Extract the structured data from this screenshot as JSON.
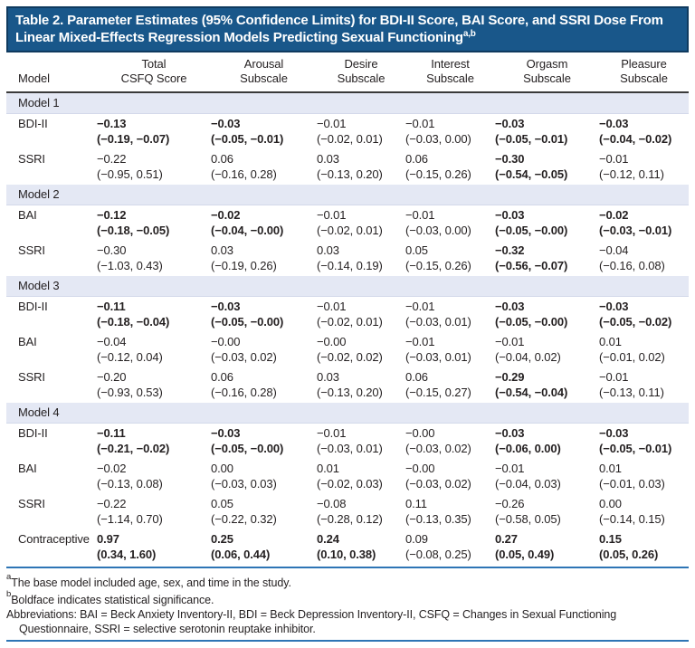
{
  "title": {
    "text": "Table 2. Parameter Estimates (95% Confidence Limits) for BDI-II Score, BAI Score, and SSRI Dose From Linear Mixed-Effects Regression Models Predicting Sexual Functioning",
    "superscript": "a,b"
  },
  "colors": {
    "title_bar_fill": "#19578a",
    "title_bar_border": "#0f3a5f",
    "group_band": "#e4e8f4",
    "rule_blue": "#2e75b5",
    "header_rule": "#3a3a3a",
    "text": "#231f20"
  },
  "columns": [
    {
      "line1": "",
      "line2": "Model"
    },
    {
      "line1": "Total",
      "line2": "CSFQ Score"
    },
    {
      "line1": "Arousal",
      "line2": "Subscale"
    },
    {
      "line1": "Desire",
      "line2": "Subscale"
    },
    {
      "line1": "Interest",
      "line2": "Subscale"
    },
    {
      "line1": "Orgasm",
      "line2": "Subscale"
    },
    {
      "line1": "Pleasure",
      "line2": "Subscale"
    }
  ],
  "groups": [
    {
      "label": "Model 1",
      "rows": [
        {
          "label": "BDI-II",
          "cells": [
            {
              "est": "−0.13",
              "ci": "(−0.19, −0.07)",
              "bold": true
            },
            {
              "est": "−0.03",
              "ci": "(−0.05, −0.01)",
              "bold": true
            },
            {
              "est": "−0.01",
              "ci": "(−0.02, 0.01)",
              "bold": false
            },
            {
              "est": "−0.01",
              "ci": "(−0.03, 0.00)",
              "bold": false
            },
            {
              "est": "−0.03",
              "ci": "(−0.05, −0.01)",
              "bold": true
            },
            {
              "est": "−0.03",
              "ci": "(−0.04, −0.02)",
              "bold": true
            }
          ]
        },
        {
          "label": "SSRI",
          "cells": [
            {
              "est": "−0.22",
              "ci": "(−0.95, 0.51)",
              "bold": false
            },
            {
              "est": "0.06",
              "ci": "(−0.16, 0.28)",
              "bold": false
            },
            {
              "est": "0.03",
              "ci": "(−0.13, 0.20)",
              "bold": false
            },
            {
              "est": "0.06",
              "ci": "(−0.15, 0.26)",
              "bold": false
            },
            {
              "est": "−0.30",
              "ci": "(−0.54, −0.05)",
              "bold": true
            },
            {
              "est": "−0.01",
              "ci": "(−0.12, 0.11)",
              "bold": false
            }
          ]
        }
      ]
    },
    {
      "label": "Model 2",
      "rows": [
        {
          "label": "BAI",
          "cells": [
            {
              "est": "−0.12",
              "ci": "(−0.18, −0.05)",
              "bold": true
            },
            {
              "est": "−0.02",
              "ci": "(−0.04, −0.00)",
              "bold": true
            },
            {
              "est": "−0.01",
              "ci": "(−0.02, 0.01)",
              "bold": false
            },
            {
              "est": "−0.01",
              "ci": "(−0.03, 0.00)",
              "bold": false
            },
            {
              "est": "−0.03",
              "ci": "(−0.05, −0.00)",
              "bold": true
            },
            {
              "est": "−0.02",
              "ci": "(−0.03, −0.01)",
              "bold": true
            }
          ]
        },
        {
          "label": "SSRI",
          "cells": [
            {
              "est": "−0.30",
              "ci": "(−1.03, 0.43)",
              "bold": false
            },
            {
              "est": "0.03",
              "ci": "(−0.19, 0.26)",
              "bold": false
            },
            {
              "est": "0.03",
              "ci": "(−0.14, 0.19)",
              "bold": false
            },
            {
              "est": "0.05",
              "ci": "(−0.15, 0.26)",
              "bold": false
            },
            {
              "est": "−0.32",
              "ci": "(−0.56, −0.07)",
              "bold": true
            },
            {
              "est": "−0.04",
              "ci": "(−0.16, 0.08)",
              "bold": false
            }
          ]
        }
      ]
    },
    {
      "label": "Model 3",
      "rows": [
        {
          "label": "BDI-II",
          "cells": [
            {
              "est": "−0.11",
              "ci": "(−0.18, −0.04)",
              "bold": true
            },
            {
              "est": "−0.03",
              "ci": "(−0.05, −0.00)",
              "bold": true
            },
            {
              "est": "−0.01",
              "ci": "(−0.02, 0.01)",
              "bold": false
            },
            {
              "est": "−0.01",
              "ci": "(−0.03, 0.01)",
              "bold": false
            },
            {
              "est": "−0.03",
              "ci": "(−0.05, −0.00)",
              "bold": true
            },
            {
              "est": "−0.03",
              "ci": "(−0.05, −0.02)",
              "bold": true
            }
          ]
        },
        {
          "label": "BAI",
          "cells": [
            {
              "est": "−0.04",
              "ci": "(−0.12, 0.04)",
              "bold": false
            },
            {
              "est": "−0.00",
              "ci": "(−0.03, 0.02)",
              "bold": false
            },
            {
              "est": "−0.00",
              "ci": "(−0.02, 0.02)",
              "bold": false
            },
            {
              "est": "−0.01",
              "ci": "(−0.03, 0.01)",
              "bold": false
            },
            {
              "est": "−0.01",
              "ci": "(−0.04, 0.02)",
              "bold": false
            },
            {
              "est": "0.01",
              "ci": "(−0.01, 0.02)",
              "bold": false
            }
          ]
        },
        {
          "label": "SSRI",
          "cells": [
            {
              "est": "−0.20",
              "ci": "(−0.93, 0.53)",
              "bold": false
            },
            {
              "est": "0.06",
              "ci": "(−0.16, 0.28)",
              "bold": false
            },
            {
              "est": "0.03",
              "ci": "(−0.13, 0.20)",
              "bold": false
            },
            {
              "est": "0.06",
              "ci": "(−0.15, 0.27)",
              "bold": false
            },
            {
              "est": "−0.29",
              "ci": "(−0.54, −0.04)",
              "bold": true
            },
            {
              "est": "−0.01",
              "ci": "(−0.13, 0.11)",
              "bold": false
            }
          ]
        }
      ]
    },
    {
      "label": "Model 4",
      "rows": [
        {
          "label": "BDI-II",
          "cells": [
            {
              "est": "−0.11",
              "ci": "(−0.21, −0.02)",
              "bold": true
            },
            {
              "est": "−0.03",
              "ci": "(−0.05, −0.00)",
              "bold": true
            },
            {
              "est": "−0.01",
              "ci": "(−0.03, 0.01)",
              "bold": false
            },
            {
              "est": "−0.00",
              "ci": "(−0.03, 0.02)",
              "bold": false
            },
            {
              "est": "−0.03",
              "ci": "(−0.06, 0.00)",
              "bold": true
            },
            {
              "est": "−0.03",
              "ci": "(−0.05, −0.01)",
              "bold": true
            }
          ]
        },
        {
          "label": "BAI",
          "cells": [
            {
              "est": "−0.02",
              "ci": "(−0.13, 0.08)",
              "bold": false
            },
            {
              "est": "0.00",
              "ci": "(−0.03, 0.03)",
              "bold": false
            },
            {
              "est": "0.01",
              "ci": "(−0.02, 0.03)",
              "bold": false
            },
            {
              "est": "−0.00",
              "ci": "(−0.03, 0.02)",
              "bold": false
            },
            {
              "est": "−0.01",
              "ci": "(−0.04, 0.03)",
              "bold": false
            },
            {
              "est": "0.01",
              "ci": "(−0.01, 0.03)",
              "bold": false
            }
          ]
        },
        {
          "label": "SSRI",
          "cells": [
            {
              "est": "−0.22",
              "ci": "(−1.14, 0.70)",
              "bold": false
            },
            {
              "est": "0.05",
              "ci": "(−0.22, 0.32)",
              "bold": false
            },
            {
              "est": "−0.08",
              "ci": "(−0.28, 0.12)",
              "bold": false
            },
            {
              "est": "0.11",
              "ci": "(−0.13, 0.35)",
              "bold": false
            },
            {
              "est": "−0.26",
              "ci": "(−0.58, 0.05)",
              "bold": false
            },
            {
              "est": "0.00",
              "ci": "(−0.14, 0.15)",
              "bold": false
            }
          ]
        },
        {
          "label": "Contraceptive",
          "cells": [
            {
              "est": "0.97",
              "ci": "(0.34, 1.60)",
              "bold": true
            },
            {
              "est": "0.25",
              "ci": "(0.06, 0.44)",
              "bold": true
            },
            {
              "est": "0.24",
              "ci": "(0.10, 0.38)",
              "bold": true
            },
            {
              "est": "0.09",
              "ci": "(−0.08, 0.25)",
              "bold": false
            },
            {
              "est": "0.27",
              "ci": "(0.05, 0.49)",
              "bold": true
            },
            {
              "est": "0.15",
              "ci": "(0.05, 0.26)",
              "bold": true
            }
          ]
        }
      ]
    }
  ],
  "footnotes": [
    {
      "sup": "a",
      "text": "The base model included age, sex, and time in the study."
    },
    {
      "sup": "b",
      "text": "Boldface indicates statistical significance."
    }
  ],
  "abbreviations": "Abbreviations: BAI = Beck Anxiety Inventory-II, BDI = Beck Depression Inventory-II, CSFQ = Changes in Sexual Functioning Questionnaire, SSRI = selective serotonin reuptake inhibitor."
}
